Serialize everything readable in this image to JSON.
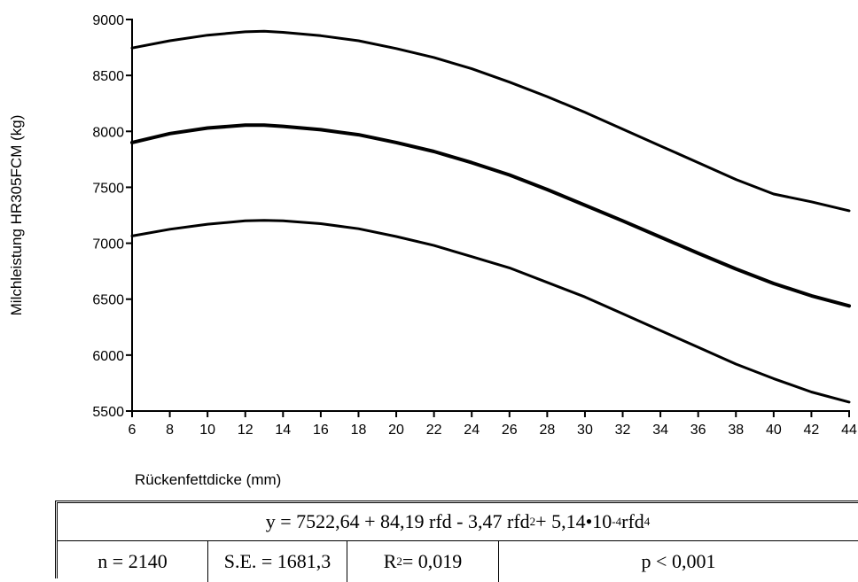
{
  "chart_data": {
    "type": "line",
    "title": "",
    "xlabel": "Rückenfettdicke (mm)",
    "ylabel": "Milchleistung HR305FCM (kg)",
    "xlim": [
      6,
      44
    ],
    "ylim": [
      5500,
      9000
    ],
    "xticks": [
      6,
      8,
      10,
      12,
      14,
      16,
      18,
      20,
      22,
      24,
      26,
      28,
      30,
      32,
      34,
      36,
      38,
      40,
      42,
      44
    ],
    "yticks": [
      5500,
      6000,
      6500,
      7000,
      7500,
      8000,
      8500,
      9000
    ],
    "grid": false,
    "legend": "none",
    "x": [
      6,
      8,
      10,
      12,
      13,
      14,
      16,
      18,
      20,
      22,
      24,
      26,
      28,
      30,
      32,
      34,
      36,
      38,
      40,
      42,
      44
    ],
    "series": [
      {
        "values": [
          8745,
          8810,
          8860,
          8890,
          8895,
          8885,
          8855,
          8810,
          8740,
          8660,
          8560,
          8440,
          8310,
          8170,
          8020,
          7870,
          7720,
          7570,
          7440,
          7370,
          7290
        ]
      },
      {
        "values": [
          7900,
          7980,
          8030,
          8055,
          8055,
          8045,
          8015,
          7970,
          7900,
          7820,
          7720,
          7610,
          7480,
          7340,
          7200,
          7055,
          6910,
          6770,
          6640,
          6530,
          6440
        ]
      },
      {
        "values": [
          7065,
          7125,
          7170,
          7200,
          7205,
          7200,
          7175,
          7130,
          7060,
          6980,
          6880,
          6780,
          6650,
          6520,
          6370,
          6220,
          6070,
          5920,
          5790,
          5670,
          5580
        ]
      }
    ]
  },
  "stats": {
    "eq_prefix": "y = 7522,64 + 84,19 rfd - 3,47 rfd",
    "eq_exp1": "2",
    "eq_mid": " + 5,14•10",
    "eq_exp2": "-4",
    "eq_rfd": " rfd",
    "eq_exp3": "4",
    "n": "n = 2140",
    "se": "S.E. = 1681,3",
    "r2_prefix": "R",
    "r2_exp": "2",
    "r2_value": " = 0,019",
    "p": "p < 0,001"
  }
}
